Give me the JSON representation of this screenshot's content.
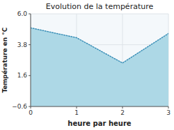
{
  "chart_data": {
    "type": "area",
    "title": "Evolution de la température",
    "x_label": "heure par heure",
    "y_label": "Température en °C",
    "x": [
      0,
      1,
      2,
      3
    ],
    "values": [
      5.0,
      4.3,
      2.5,
      4.6
    ],
    "color": "#add8e6",
    "line_style": "dotted",
    "xlim": [
      0,
      3
    ],
    "ylim": [
      -0.6,
      6.0
    ],
    "xticks": [
      0,
      1,
      2,
      3
    ],
    "yticks": [
      {
        "value": -0.6,
        "label": "−0.6"
      },
      1.6,
      3.8,
      {
        "value": 6.0,
        "label": "6.0"
      }
    ],
    "grid": true
  }
}
